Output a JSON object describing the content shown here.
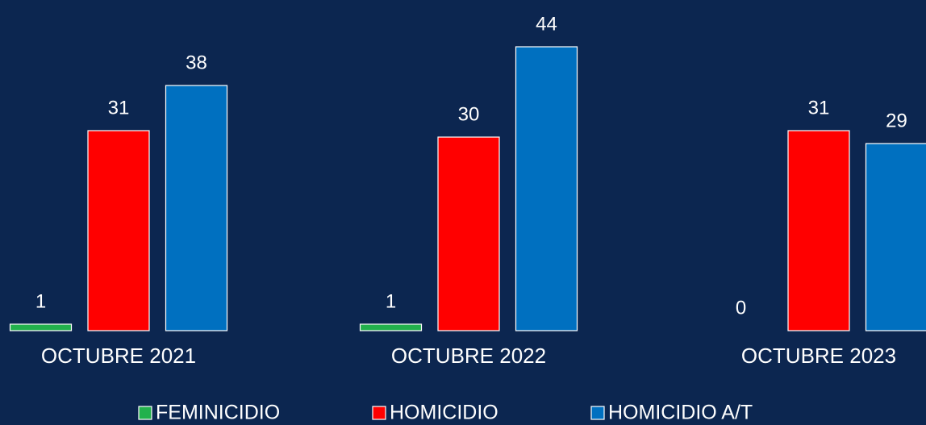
{
  "chart_data": {
    "type": "bar",
    "categories": [
      "OCTUBRE 2021",
      "OCTUBRE 2022",
      "OCTUBRE 2023"
    ],
    "series": [
      {
        "name": "FEMINICIDIO",
        "color": "#22b14c",
        "values": [
          1,
          1,
          0
        ]
      },
      {
        "name": "HOMICIDIO",
        "color": "#ff0000",
        "values": [
          31,
          30,
          31
        ]
      },
      {
        "name": "HOMICIDIO A/T",
        "color": "#0070c0",
        "values": [
          38,
          44,
          29
        ]
      }
    ]
  }
}
